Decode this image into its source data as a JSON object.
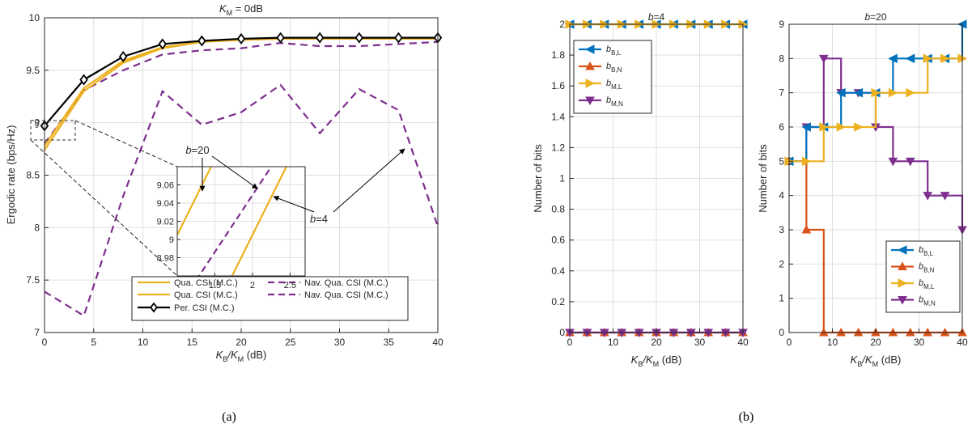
{
  "figure": {
    "caption_a": "(a)",
    "caption_b": "(b)"
  },
  "chart_data": [
    {
      "id": "a",
      "type": "line",
      "title_main": "K",
      "title_sub": "M",
      "title_rest": " = 0dB",
      "xlabel_main": "K",
      "xlabel_sub": "B",
      "xlabel_mid": "/K",
      "xlabel_sub2": "M",
      "xlabel_rest": " (dB)",
      "ylabel": "Ergodic rate (bps/Hz)",
      "xlim": [
        0,
        40
      ],
      "ylim": [
        7,
        10
      ],
      "xticks": [
        0,
        5,
        10,
        15,
        20,
        25,
        30,
        35,
        40
      ],
      "yticks": [
        7,
        7.5,
        8,
        8.5,
        9,
        9.5,
        10
      ],
      "ytick_labels": [
        "7",
        "7.5",
        "8",
        "8.5",
        "9",
        "9.5",
        "10"
      ],
      "grid": true,
      "legend_position": "bottom-right",
      "legend": [
        "Qua. CSI (M.C.)",
        "Qua. CSI (M.C.)",
        "Per. CSI (M.C.)",
        "Nav. Qua. CSI (M.C.)",
        "Nav. Qua. CSI (M.C.)"
      ],
      "x": [
        0,
        4,
        8,
        12,
        16,
        20,
        24,
        28,
        32,
        36,
        40
      ],
      "series": [
        {
          "name": "Qua. CSI (M.C.)",
          "color": "#EDB120",
          "style": "solid",
          "values": [
            8.78,
            9.33,
            9.59,
            9.72,
            9.77,
            9.79,
            9.8,
            9.8,
            9.8,
            9.8,
            9.8
          ]
        },
        {
          "name": "Qua. CSI (M.C.)",
          "color": "#EDB120",
          "style": "solid",
          "values": [
            8.74,
            9.3,
            9.57,
            9.71,
            9.77,
            9.79,
            9.8,
            9.8,
            9.8,
            9.8,
            9.8
          ]
        },
        {
          "name": "Per. CSI (M.C.)",
          "color": "#000000",
          "style": "solid",
          "marker": "diamond",
          "values": [
            8.97,
            9.41,
            9.63,
            9.75,
            9.78,
            9.8,
            9.81,
            9.81,
            9.81,
            9.81,
            9.81
          ]
        },
        {
          "name": "Nav. Qua. CSI (M.C.)",
          "color": "#7E2F8E",
          "style": "dashed",
          "values": [
            8.8,
            9.31,
            9.5,
            9.65,
            9.69,
            9.71,
            9.76,
            9.73,
            9.73,
            9.75,
            9.77
          ]
        },
        {
          "name": "Nav. Qua. CSI (M.C.)",
          "color": "#7E2F8E",
          "style": "dashed",
          "values": [
            7.39,
            7.16,
            8.3,
            9.3,
            8.98,
            9.1,
            9.36,
            8.9,
            9.32,
            9.12,
            8.01
          ]
        }
      ],
      "inset": {
        "xlim": [
          1,
          2.7
        ],
        "ylim": [
          8.96,
          9.08
        ],
        "xticks": [
          1.5,
          2,
          2.5
        ],
        "yticks": [
          8.98,
          9,
          9.02,
          9.04,
          9.06
        ],
        "box_label": "9",
        "annot_b20": "b=20",
        "annot_b4": "b=4",
        "lines": [
          {
            "color": "#EDB120",
            "style": "solid",
            "x": [
              1.0,
              1.45
            ],
            "y": [
              9.005,
              9.08
            ]
          },
          {
            "color": "#EDB120",
            "style": "solid",
            "x": [
              1.7,
              2.45
            ],
            "y": [
              8.955,
              9.08
            ]
          },
          {
            "color": "#7E2F8E",
            "style": "dashed",
            "x": [
              1.25,
              2.25
            ],
            "y": [
              8.955,
              9.08
            ]
          }
        ]
      }
    },
    {
      "id": "b1",
      "type": "line",
      "title": "b=4",
      "xlabel_main": "K",
      "xlabel_sub": "B",
      "xlabel_mid": "/K",
      "xlabel_sub2": "M",
      "xlabel_rest": " (dB)",
      "ylabel": "Number of bits",
      "xlim": [
        0,
        40
      ],
      "ylim": [
        0,
        2
      ],
      "xticks": [
        0,
        10,
        20,
        30,
        40
      ],
      "yticks": [
        0,
        0.2,
        0.4,
        0.6,
        0.8,
        1,
        1.2,
        1.4,
        1.6,
        1.8,
        2
      ],
      "ytick_labels": [
        "0",
        "0.2",
        "0.4",
        "0.6",
        "0.8",
        "1",
        "1.2",
        "1.4",
        "1.6",
        "1.8",
        "2"
      ],
      "grid": true,
      "legend_position": "top-left",
      "x": [
        0,
        4,
        8,
        12,
        16,
        20,
        24,
        28,
        32,
        36,
        40
      ],
      "series": [
        {
          "name": "b_B,L",
          "main": "b",
          "sub": "B,L",
          "color": "#0072BD",
          "marker": "triangle-left",
          "values": [
            2,
            2,
            2,
            2,
            2,
            2,
            2,
            2,
            2,
            2,
            2
          ]
        },
        {
          "name": "b_B,N",
          "main": "b",
          "sub": "B,N",
          "color": "#D95319",
          "marker": "triangle-up",
          "values": [
            0,
            0,
            0,
            0,
            0,
            0,
            0,
            0,
            0,
            0,
            0
          ]
        },
        {
          "name": "b_M,L",
          "main": "b",
          "sub": "M,L",
          "color": "#EDB120",
          "marker": "triangle-right",
          "values": [
            2,
            2,
            2,
            2,
            2,
            2,
            2,
            2,
            2,
            2,
            2
          ]
        },
        {
          "name": "b_M,N",
          "main": "b",
          "sub": "M,N",
          "color": "#7E2F8E",
          "marker": "triangle-down",
          "values": [
            0,
            0,
            0,
            0,
            0,
            0,
            0,
            0,
            0,
            0,
            0
          ]
        }
      ]
    },
    {
      "id": "b2",
      "type": "line",
      "title": "b=20",
      "xlabel_main": "K",
      "xlabel_sub": "B",
      "xlabel_mid": "/K",
      "xlabel_sub2": "M",
      "xlabel_rest": " (dB)",
      "ylabel": "Number of bits",
      "xlim": [
        0,
        40
      ],
      "ylim": [
        0,
        9
      ],
      "xticks": [
        0,
        10,
        20,
        30,
        40
      ],
      "yticks": [
        0,
        1,
        2,
        3,
        4,
        5,
        6,
        7,
        8,
        9
      ],
      "ytick_labels": [
        "0",
        "1",
        "2",
        "3",
        "4",
        "5",
        "6",
        "7",
        "8",
        "9"
      ],
      "grid": true,
      "legend_position": "bottom-right",
      "x": [
        0,
        4,
        8,
        12,
        16,
        20,
        24,
        28,
        32,
        36,
        40
      ],
      "series": [
        {
          "name": "b_B,L",
          "main": "b",
          "sub": "B,L",
          "color": "#0072BD",
          "marker": "triangle-left",
          "values": [
            5,
            6,
            6,
            7,
            7,
            7,
            8,
            8,
            8,
            8,
            9
          ]
        },
        {
          "name": "b_B,N",
          "main": "b",
          "sub": "B,N",
          "color": "#D95319",
          "marker": "triangle-up",
          "values": [
            5,
            3,
            0,
            0,
            0,
            0,
            0,
            0,
            0,
            0,
            0
          ]
        },
        {
          "name": "b_M,L",
          "main": "b",
          "sub": "M,L",
          "color": "#EDB120",
          "marker": "triangle-right",
          "values": [
            5,
            5,
            6,
            6,
            6,
            7,
            7,
            7,
            8,
            8,
            8
          ]
        },
        {
          "name": "b_M,N",
          "main": "b",
          "sub": "M,N",
          "color": "#7E2F8E",
          "marker": "triangle-down",
          "values": [
            5,
            6,
            8,
            7,
            7,
            6,
            5,
            5,
            4,
            4,
            3
          ]
        }
      ]
    }
  ]
}
